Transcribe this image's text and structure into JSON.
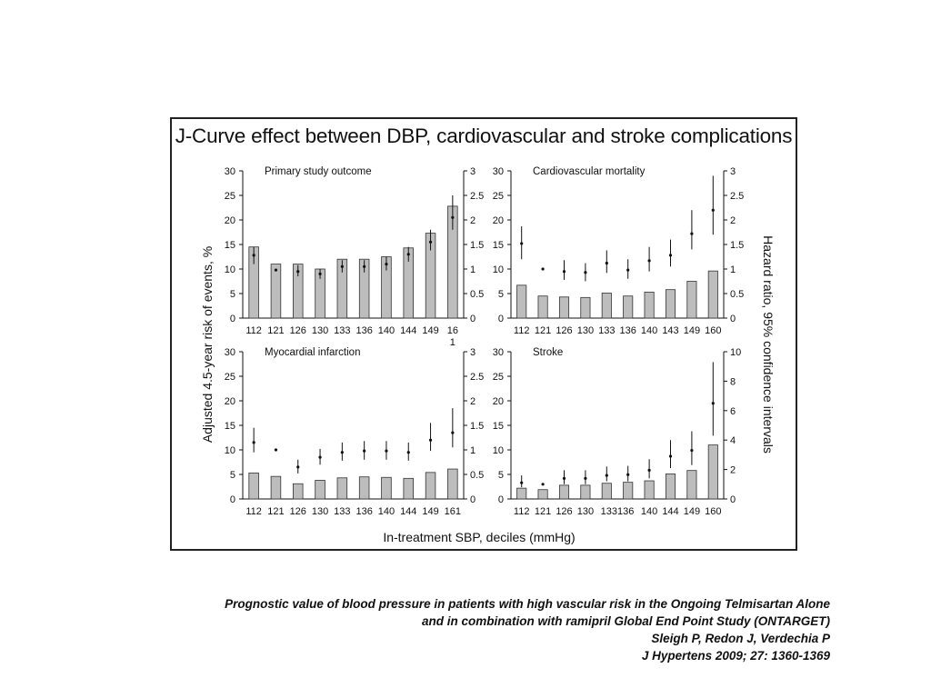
{
  "figure": {
    "title": "J-Curve effect between DBP, cardiovascular and stroke complications",
    "shared_ylabel_left": "Adjusted 4.5-year risk of events, %",
    "shared_ylabel_right": "Hazard ratio, 95% confidence intervals",
    "shared_xlabel": "In-treatment SBP, deciles (mmHg)"
  },
  "caption": {
    "line1": "Prognostic value of blood pressure in patients with high vascular risk in the Ongoing  Telmisartan Alone",
    "line2": "and in combination with ramipril Global End Point Study (ONTARGET)",
    "line3": "Sleigh P, Redon J, Verdechia P",
    "line4": "J Hypertens 2009; 27: 1360-1369"
  },
  "colors": {
    "bar_fill": "#bdbdbd",
    "bar_stroke": "#333333",
    "axis": "#111111",
    "frame": "#222222"
  },
  "chart_data": [
    {
      "type": "bar",
      "title": "Primary study outcome",
      "categories": [
        "112",
        "121",
        "126",
        "130",
        "133",
        "136",
        "140",
        "144",
        "149",
        "161"
      ],
      "tick_labels": [
        "112",
        "121",
        "126",
        "130",
        "133",
        "136",
        "140",
        "144",
        "149",
        "16\n1"
      ],
      "left_axis": {
        "ylim": [
          0,
          30
        ],
        "ticks": [
          0,
          5,
          10,
          15,
          20,
          25,
          30
        ]
      },
      "right_axis": {
        "ylim": [
          0,
          3
        ],
        "ticks": [
          0,
          0.5,
          1,
          1.5,
          2,
          2.5,
          3
        ]
      },
      "bars_percent": [
        14.5,
        11,
        11,
        10,
        12,
        12,
        12.5,
        14.3,
        17.3,
        22.8
      ],
      "hazard_ratio": [
        {
          "hr": 1.28,
          "lo": 1.1,
          "hi": 1.45
        },
        {
          "hr": 0.98,
          "lo": 0.98,
          "hi": 0.98
        },
        {
          "hr": 0.95,
          "lo": 0.85,
          "hi": 1.08
        },
        {
          "hr": 0.9,
          "lo": 0.8,
          "hi": 1.0
        },
        {
          "hr": 1.05,
          "lo": 0.93,
          "hi": 1.18
        },
        {
          "hr": 1.05,
          "lo": 0.93,
          "hi": 1.18
        },
        {
          "hr": 1.1,
          "lo": 0.97,
          "hi": 1.25
        },
        {
          "hr": 1.3,
          "lo": 1.15,
          "hi": 1.45
        },
        {
          "hr": 1.55,
          "lo": 1.38,
          "hi": 1.8
        },
        {
          "hr": 2.05,
          "lo": 1.8,
          "hi": 2.5
        }
      ]
    },
    {
      "type": "bar",
      "title": "Cardiovascular mortality",
      "categories": [
        "112",
        "121",
        "126",
        "130",
        "133",
        "136",
        "140",
        "143",
        "149",
        "160"
      ],
      "tick_labels": [
        "112",
        "121",
        "126",
        "130",
        "133",
        "136",
        "140",
        "143",
        "149",
        "160"
      ],
      "left_axis": {
        "ylim": [
          0,
          30
        ],
        "ticks": [
          0,
          5,
          10,
          15,
          20,
          25,
          30
        ]
      },
      "right_axis": {
        "ylim": [
          0,
          3
        ],
        "ticks": [
          0,
          0.5,
          1,
          1.5,
          2,
          2.5,
          3
        ]
      },
      "bars_percent": [
        6.7,
        4.5,
        4.3,
        4.2,
        5.1,
        4.5,
        5.3,
        5.8,
        7.5,
        9.6
      ],
      "hazard_ratio": [
        {
          "hr": 1.52,
          "lo": 1.2,
          "hi": 1.87
        },
        {
          "hr": 1.0,
          "lo": 1.0,
          "hi": 1.0
        },
        {
          "hr": 0.95,
          "lo": 0.78,
          "hi": 1.18
        },
        {
          "hr": 0.93,
          "lo": 0.75,
          "hi": 1.12
        },
        {
          "hr": 1.12,
          "lo": 0.92,
          "hi": 1.38
        },
        {
          "hr": 0.98,
          "lo": 0.8,
          "hi": 1.2
        },
        {
          "hr": 1.17,
          "lo": 0.95,
          "hi": 1.45
        },
        {
          "hr": 1.28,
          "lo": 1.05,
          "hi": 1.6
        },
        {
          "hr": 1.72,
          "lo": 1.4,
          "hi": 2.2
        },
        {
          "hr": 2.2,
          "lo": 1.7,
          "hi": 2.9
        }
      ]
    },
    {
      "type": "bar",
      "title": "Myocardial infarction",
      "categories": [
        "112",
        "121",
        "126",
        "130",
        "133",
        "136",
        "140",
        "144",
        "149",
        "161"
      ],
      "tick_labels": [
        "112",
        "121",
        "126",
        "130",
        "133",
        "136",
        "140",
        "144",
        "149",
        "161"
      ],
      "left_axis": {
        "ylim": [
          0,
          30
        ],
        "ticks": [
          0,
          5,
          10,
          15,
          20,
          25,
          30
        ]
      },
      "right_axis": {
        "ylim": [
          0,
          3
        ],
        "ticks": [
          0,
          0.5,
          1,
          1.5,
          2,
          2.5,
          3
        ]
      },
      "bars_percent": [
        5.3,
        4.6,
        3.1,
        3.8,
        4.3,
        4.5,
        4.4,
        4.2,
        5.4,
        6.1
      ],
      "hazard_ratio": [
        {
          "hr": 1.15,
          "lo": 0.95,
          "hi": 1.45
        },
        {
          "hr": 1.0,
          "lo": 1.0,
          "hi": 1.0
        },
        {
          "hr": 0.65,
          "lo": 0.52,
          "hi": 0.8
        },
        {
          "hr": 0.85,
          "lo": 0.7,
          "hi": 1.02
        },
        {
          "hr": 0.95,
          "lo": 0.78,
          "hi": 1.15
        },
        {
          "hr": 0.98,
          "lo": 0.8,
          "hi": 1.18
        },
        {
          "hr": 0.98,
          "lo": 0.8,
          "hi": 1.18
        },
        {
          "hr": 0.95,
          "lo": 0.78,
          "hi": 1.15
        },
        {
          "hr": 1.2,
          "lo": 0.98,
          "hi": 1.55
        },
        {
          "hr": 1.35,
          "lo": 1.05,
          "hi": 1.85
        }
      ]
    },
    {
      "type": "bar",
      "title": "Stroke",
      "categories": [
        "112",
        "121",
        "126",
        "130",
        "133",
        "136",
        "140",
        "144",
        "149",
        "160"
      ],
      "tick_labels": [
        "112",
        "121",
        "126",
        "130",
        "133136",
        "",
        "140",
        "144",
        "149",
        "160"
      ],
      "left_axis": {
        "ylim": [
          0,
          30
        ],
        "ticks": [
          0,
          5,
          10,
          15,
          20,
          25,
          30
        ]
      },
      "right_axis": {
        "ylim": [
          0,
          10
        ],
        "ticks": [
          0,
          2,
          4,
          6,
          8,
          10
        ]
      },
      "bars_percent": [
        2.2,
        1.9,
        2.8,
        2.8,
        3.2,
        3.4,
        3.7,
        5.1,
        5.8,
        11.0
      ],
      "hazard_ratio": [
        {
          "hr": 1.1,
          "lo": 0.8,
          "hi": 1.6
        },
        {
          "hr": 1.0,
          "lo": 1.0,
          "hi": 1.0
        },
        {
          "hr": 1.4,
          "lo": 1.0,
          "hi": 1.95
        },
        {
          "hr": 1.4,
          "lo": 1.0,
          "hi": 1.95
        },
        {
          "hr": 1.6,
          "lo": 1.2,
          "hi": 2.2
        },
        {
          "hr": 1.65,
          "lo": 1.2,
          "hi": 2.25
        },
        {
          "hr": 1.95,
          "lo": 1.4,
          "hi": 2.7
        },
        {
          "hr": 2.9,
          "lo": 2.1,
          "hi": 4.0
        },
        {
          "hr": 3.3,
          "lo": 2.3,
          "hi": 4.6
        },
        {
          "hr": 6.5,
          "lo": 4.3,
          "hi": 9.3
        }
      ]
    }
  ]
}
